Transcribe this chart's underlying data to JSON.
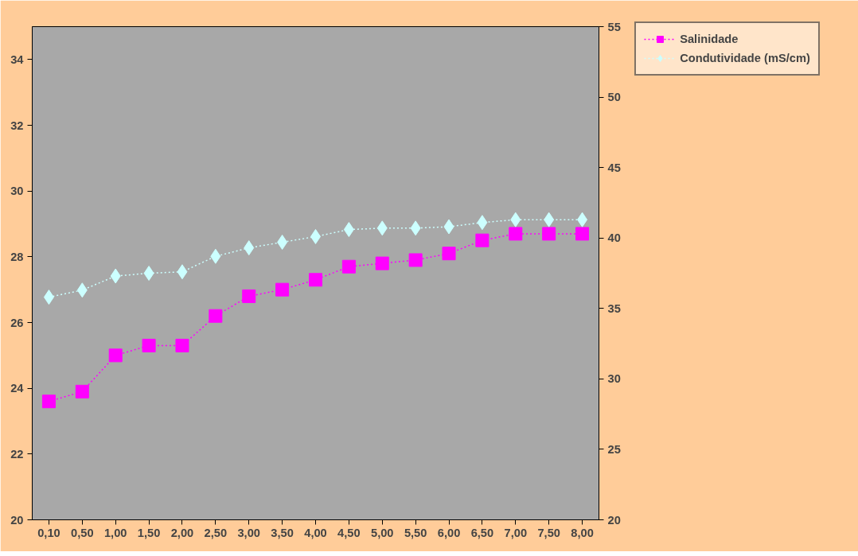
{
  "chart_data": {
    "type": "line",
    "categories": [
      "0,10",
      "0,50",
      "1,00",
      "1,50",
      "2,00",
      "2,50",
      "3,00",
      "3,50",
      "4,00",
      "4,50",
      "5,00",
      "5,50",
      "6,00",
      "6,50",
      "7,00",
      "7,50",
      "8,00"
    ],
    "series": [
      {
        "name": "Salinidade",
        "color": "#ff00ff",
        "marker": "square",
        "values": [
          23.6,
          23.9,
          25.0,
          25.3,
          25.3,
          26.2,
          26.8,
          27.0,
          27.3,
          27.7,
          27.8,
          27.9,
          28.1,
          28.5,
          28.7,
          28.7,
          28.7
        ]
      },
      {
        "name": "Condutividade (mS/cm)",
        "color": "#ccffff",
        "marker": "diamond",
        "axis": "y2",
        "values": [
          35.8,
          36.3,
          37.3,
          37.5,
          37.6,
          38.7,
          39.3,
          39.7,
          40.1,
          40.6,
          40.7,
          40.7,
          40.8,
          41.1,
          41.3,
          41.3,
          41.3
        ]
      }
    ],
    "ylim": [
      20,
      35
    ],
    "yticks": [
      20,
      22,
      24,
      26,
      28,
      30,
      32,
      34
    ],
    "y2lim": [
      20,
      55
    ],
    "y2ticks": [
      20,
      25,
      30,
      35,
      40,
      45,
      50,
      55
    ],
    "line_style": "dotted",
    "grid": false,
    "legend": "top right"
  }
}
